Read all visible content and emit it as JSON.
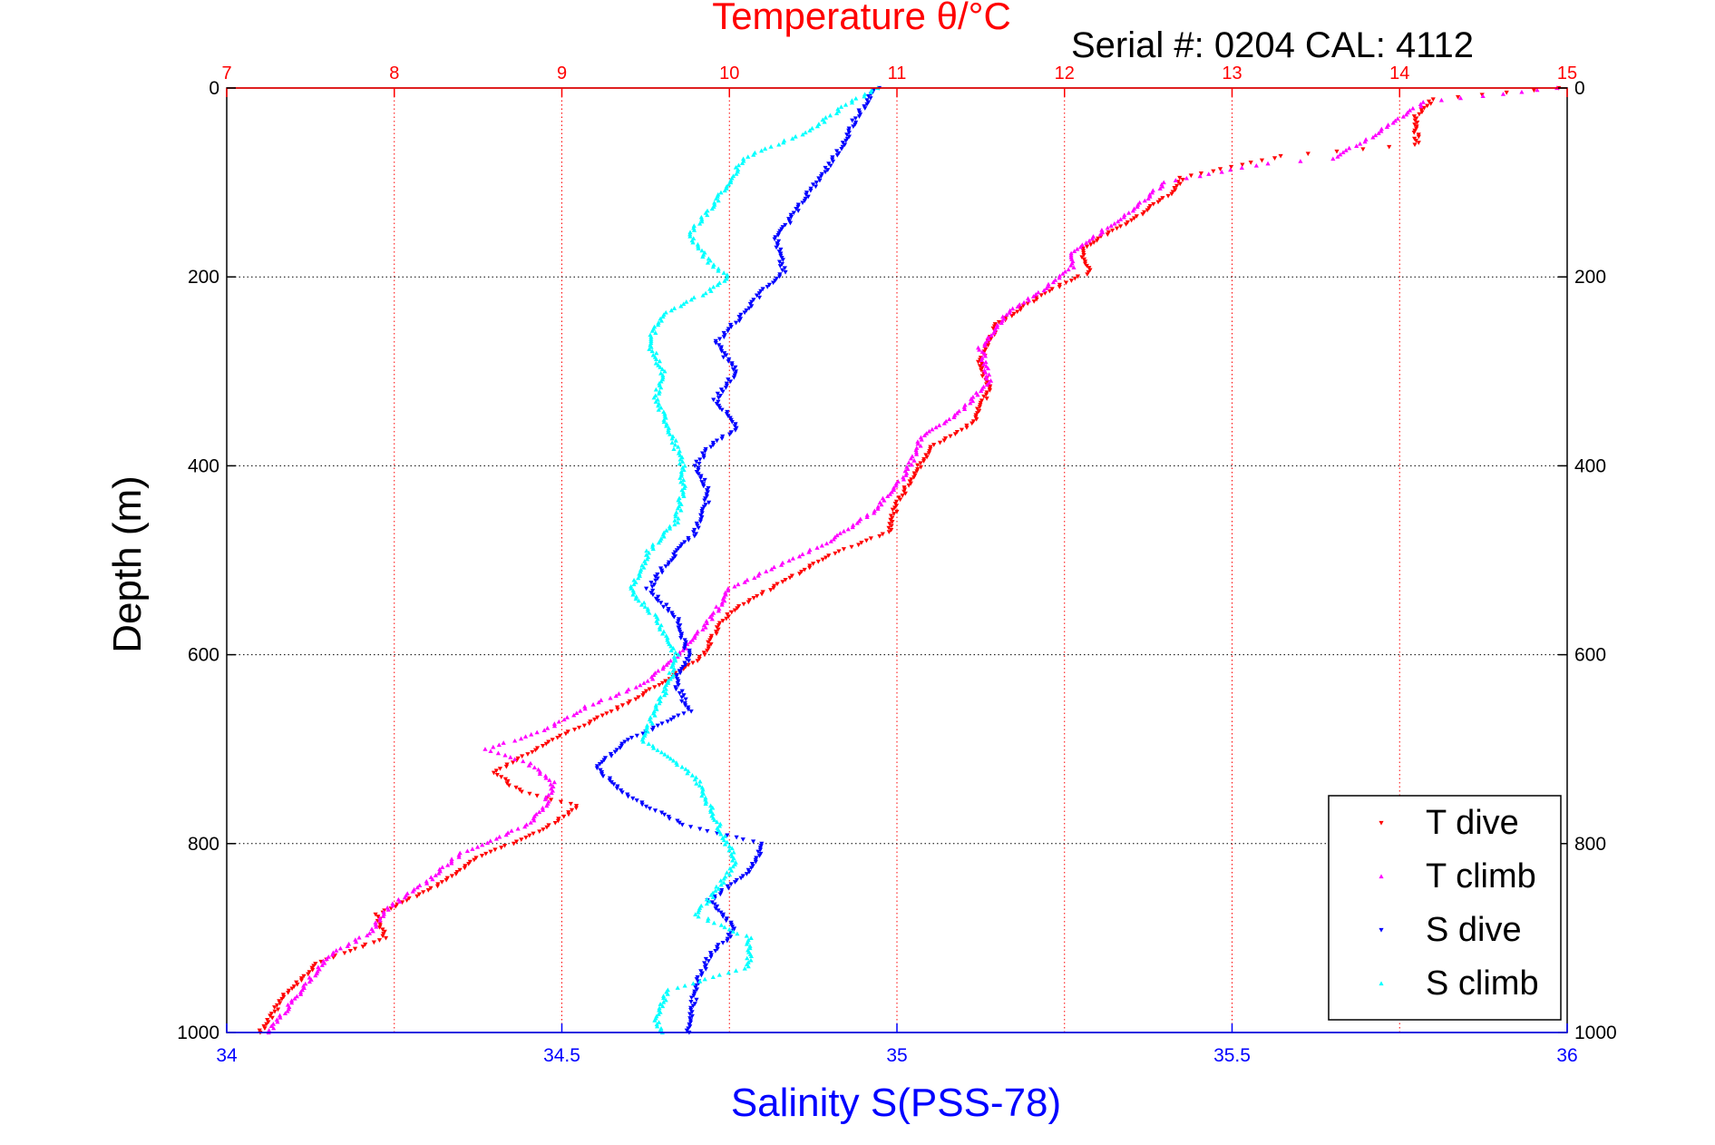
{
  "chart_data": {
    "type": "scatter",
    "title": "Temperature θ/°C",
    "subtitle": "Serial #: 0204  CAL: 4112",
    "ylabel": "Depth (m)",
    "xlabel": "Salinity S(PSS-78)",
    "colors": {
      "t_dive": "#ff0000",
      "t_climb": "#ff00ff",
      "s_dive": "#0000ff",
      "s_climb": "#00ffff",
      "temp_axis": "#ff0000",
      "sal_axis": "#0000ff"
    },
    "x_top": {
      "label": "Temperature θ/°C",
      "range": [
        7,
        15
      ],
      "ticks": [
        "7",
        "8",
        "9",
        "10",
        "11",
        "12",
        "13",
        "14",
        "15"
      ],
      "grid": true
    },
    "x_bottom": {
      "label": "Salinity S(PSS-78)",
      "range": [
        34,
        36
      ],
      "ticks": [
        "34",
        "34.5",
        "35",
        "35.5",
        "36"
      ]
    },
    "y": {
      "label": "Depth (m)",
      "range": [
        0,
        1000
      ],
      "reversed": true,
      "ticks": [
        "0",
        "200",
        "400",
        "600",
        "800",
        "1000"
      ],
      "grid": true
    },
    "legend": {
      "placement": "bottom-right",
      "entries": [
        "T dive",
        "T climb",
        "S dive",
        "S climb"
      ]
    },
    "series": [
      {
        "name": "T dive",
        "axis": "top",
        "marker": "triangle-down",
        "points": [
          [
            14.95,
            0
          ],
          [
            14.2,
            12
          ],
          [
            14.1,
            30
          ],
          [
            14.1,
            60
          ],
          [
            13.3,
            72
          ],
          [
            12.7,
            95
          ],
          [
            12.65,
            110
          ],
          [
            12.4,
            140
          ],
          [
            12.1,
            170
          ],
          [
            12.15,
            195
          ],
          [
            11.9,
            215
          ],
          [
            11.6,
            250
          ],
          [
            11.5,
            290
          ],
          [
            11.55,
            320
          ],
          [
            11.45,
            355
          ],
          [
            11.2,
            380
          ],
          [
            11.1,
            410
          ],
          [
            11.0,
            440
          ],
          [
            10.95,
            470
          ],
          [
            10.6,
            495
          ],
          [
            10.3,
            525
          ],
          [
            10.0,
            555
          ],
          [
            9.9,
            580
          ],
          [
            9.85,
            600
          ],
          [
            9.6,
            630
          ],
          [
            9.3,
            660
          ],
          [
            8.95,
            690
          ],
          [
            8.6,
            725
          ],
          [
            8.75,
            745
          ],
          [
            9.1,
            760
          ],
          [
            8.9,
            785
          ],
          [
            8.5,
            815
          ],
          [
            8.25,
            845
          ],
          [
            7.9,
            875
          ],
          [
            7.95,
            900
          ],
          [
            7.55,
            925
          ],
          [
            7.35,
            960
          ],
          [
            7.2,
            1000
          ]
        ]
      },
      {
        "name": "T climb",
        "axis": "top",
        "marker": "triangle-up",
        "points": [
          [
            14.95,
            0
          ],
          [
            14.15,
            15
          ],
          [
            13.85,
            50
          ],
          [
            13.6,
            75
          ],
          [
            13.2,
            80
          ],
          [
            12.6,
            100
          ],
          [
            12.4,
            130
          ],
          [
            12.2,
            155
          ],
          [
            12.05,
            175
          ],
          [
            12.05,
            190
          ],
          [
            11.9,
            210
          ],
          [
            11.65,
            240
          ],
          [
            11.5,
            275
          ],
          [
            11.55,
            310
          ],
          [
            11.4,
            340
          ],
          [
            11.15,
            370
          ],
          [
            11.05,
            410
          ],
          [
            10.85,
            450
          ],
          [
            10.6,
            480
          ],
          [
            10.3,
            505
          ],
          [
            10.0,
            530
          ],
          [
            9.9,
            560
          ],
          [
            9.7,
            600
          ],
          [
            9.5,
            630
          ],
          [
            9.15,
            655
          ],
          [
            8.9,
            680
          ],
          [
            8.55,
            700
          ],
          [
            8.8,
            715
          ],
          [
            8.95,
            735
          ],
          [
            8.9,
            760
          ],
          [
            8.8,
            780
          ],
          [
            8.4,
            810
          ],
          [
            8.2,
            840
          ],
          [
            7.95,
            870
          ],
          [
            7.85,
            895
          ],
          [
            7.6,
            920
          ],
          [
            7.45,
            955
          ],
          [
            7.25,
            1000
          ]
        ]
      },
      {
        "name": "S dive",
        "axis": "bottom",
        "marker": "triangle-down",
        "points": [
          [
            34.97,
            0
          ],
          [
            34.94,
            30
          ],
          [
            34.92,
            60
          ],
          [
            34.88,
            100
          ],
          [
            34.85,
            130
          ],
          [
            34.82,
            160
          ],
          [
            34.83,
            195
          ],
          [
            34.8,
            215
          ],
          [
            34.77,
            240
          ],
          [
            34.73,
            270
          ],
          [
            34.76,
            300
          ],
          [
            34.73,
            330
          ],
          [
            34.76,
            360
          ],
          [
            34.72,
            380
          ],
          [
            34.7,
            400
          ],
          [
            34.72,
            430
          ],
          [
            34.7,
            470
          ],
          [
            34.66,
            500
          ],
          [
            34.63,
            530
          ],
          [
            34.67,
            560
          ],
          [
            34.69,
            600
          ],
          [
            34.67,
            630
          ],
          [
            34.69,
            660
          ],
          [
            34.6,
            690
          ],
          [
            34.55,
            720
          ],
          [
            34.6,
            750
          ],
          [
            34.68,
            780
          ],
          [
            34.8,
            800
          ],
          [
            34.78,
            830
          ],
          [
            34.72,
            860
          ],
          [
            34.76,
            890
          ],
          [
            34.72,
            920
          ],
          [
            34.7,
            950
          ],
          [
            34.69,
            1000
          ]
        ]
      },
      {
        "name": "S climb",
        "axis": "bottom",
        "marker": "triangle-up",
        "points": [
          [
            34.97,
            0
          ],
          [
            34.92,
            20
          ],
          [
            34.87,
            45
          ],
          [
            34.77,
            75
          ],
          [
            34.75,
            100
          ],
          [
            34.72,
            130
          ],
          [
            34.69,
            155
          ],
          [
            34.72,
            185
          ],
          [
            34.75,
            200
          ],
          [
            34.72,
            215
          ],
          [
            34.65,
            240
          ],
          [
            34.63,
            270
          ],
          [
            34.65,
            300
          ],
          [
            34.64,
            330
          ],
          [
            34.66,
            360
          ],
          [
            34.68,
            400
          ],
          [
            34.68,
            430
          ],
          [
            34.67,
            460
          ],
          [
            34.63,
            490
          ],
          [
            34.62,
            510
          ],
          [
            34.6,
            530
          ],
          [
            34.64,
            560
          ],
          [
            34.67,
            600
          ],
          [
            34.66,
            630
          ],
          [
            34.64,
            660
          ],
          [
            34.62,
            690
          ],
          [
            34.66,
            710
          ],
          [
            34.7,
            730
          ],
          [
            34.72,
            760
          ],
          [
            34.74,
            790
          ],
          [
            34.76,
            820
          ],
          [
            34.73,
            850
          ],
          [
            34.7,
            875
          ],
          [
            34.78,
            900
          ],
          [
            34.78,
            930
          ],
          [
            34.66,
            955
          ],
          [
            34.64,
            985
          ],
          [
            34.65,
            1000
          ]
        ]
      }
    ]
  }
}
